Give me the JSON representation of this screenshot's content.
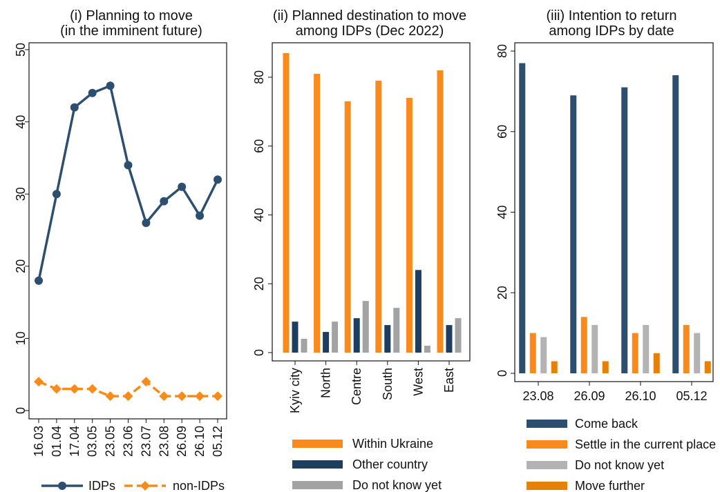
{
  "chart_data": [
    {
      "type": "line",
      "title_line1": "(i) Planning to move",
      "title_line2": "(in the imminent future)",
      "categories": [
        "16.03",
        "01.04",
        "17.04",
        "03.05",
        "23.05",
        "23.06",
        "23.07",
        "23.08",
        "26.09",
        "26.10",
        "05.12"
      ],
      "ylim": [
        0,
        50
      ],
      "yticks": [
        "0",
        "10",
        "20",
        "30",
        "40",
        "50"
      ],
      "series": [
        {
          "name": "IDPs",
          "color": "#2c4f70",
          "marker": "circle",
          "values": [
            18,
            30,
            42,
            44,
            45,
            34,
            26,
            29,
            31,
            27,
            32
          ]
        },
        {
          "name": "non-IDPs",
          "color": "#f98c18",
          "marker": "diamond",
          "values": [
            4,
            3,
            3,
            3,
            2,
            2,
            4,
            2,
            2,
            2,
            2
          ]
        }
      ],
      "legend": "bottom"
    },
    {
      "type": "bar",
      "title_line1": "(ii) Planned destination to move",
      "title_line2": "among IDPs (Dec 2022)",
      "categories": [
        "Kyiv city",
        "North",
        "Centre",
        "South",
        "West",
        "East"
      ],
      "ylim": [
        0,
        88
      ],
      "yticks": [
        "0",
        "20",
        "40",
        "60",
        "80"
      ],
      "series": [
        {
          "name": "Within Ukraine",
          "color": "#fb8a1c",
          "values": [
            87,
            81,
            73,
            79,
            74,
            82
          ]
        },
        {
          "name": "Other country",
          "color": "#1d3e5e",
          "values": [
            9,
            6,
            10,
            8,
            24,
            8
          ]
        },
        {
          "name": "Do not know yet",
          "color": "#a3a3a3",
          "values": [
            4,
            9,
            15,
            13,
            2,
            10
          ]
        }
      ],
      "legend": "bottom"
    },
    {
      "type": "bar",
      "title_line1": "(iii) Intention to return",
      "title_line2": "among IDPs by date",
      "categories": [
        "23.08",
        "26.09",
        "26.10",
        "05.12"
      ],
      "ylim": [
        0,
        80
      ],
      "yticks": [
        "0",
        "20",
        "40",
        "60",
        "80"
      ],
      "series": [
        {
          "name": "Come back",
          "color": "#2c4f70",
          "values": [
            77,
            69,
            71,
            74
          ]
        },
        {
          "name": "Settle in the current place",
          "color": "#fb8a1c",
          "values": [
            10,
            14,
            10,
            12
          ]
        },
        {
          "name": "Do not know yet",
          "color": "#b3b3b3",
          "values": [
            9,
            12,
            12,
            10
          ]
        },
        {
          "name": "Move further",
          "color": "#e58009",
          "values": [
            3,
            3,
            5,
            3
          ]
        }
      ],
      "legend": "bottom"
    }
  ]
}
